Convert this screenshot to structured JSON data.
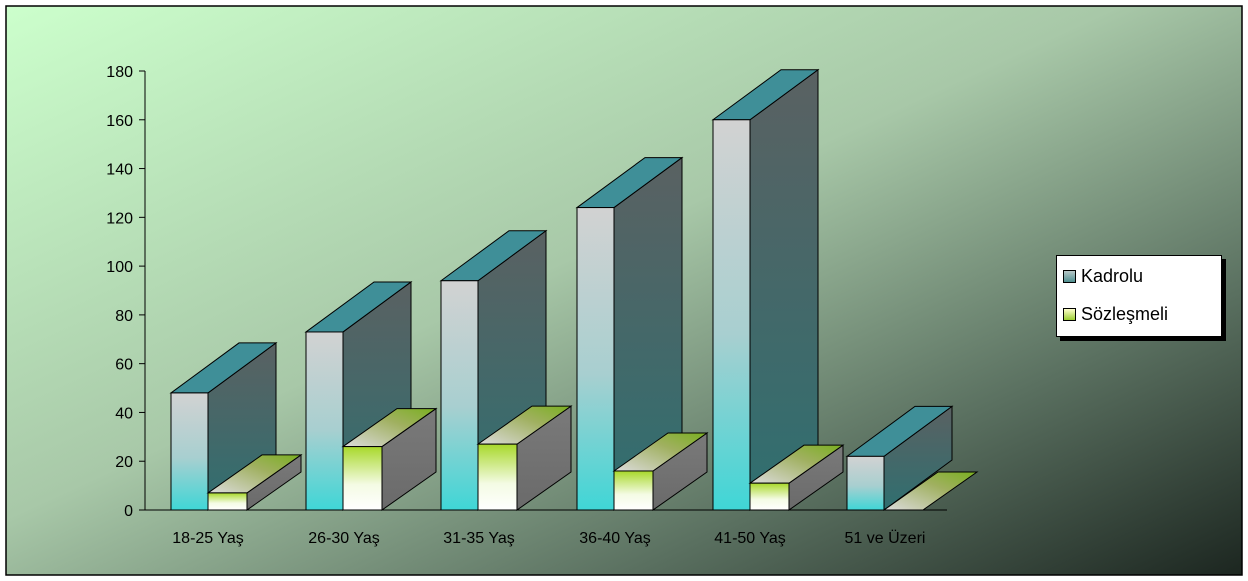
{
  "chart_data": {
    "type": "bar",
    "subtype": "3d-clustered-column",
    "categories": [
      "18-25 Yaş",
      "26-30 Yaş",
      "31-35 Yaş",
      "36-40 Yaş",
      "41-50 Yaş",
      "51 ve Üzeri"
    ],
    "series": [
      {
        "name": "Kadrolu",
        "values": [
          48,
          73,
          94,
          124,
          160,
          22
        ]
      },
      {
        "name": "Sözleşmeli",
        "values": [
          7,
          26,
          27,
          16,
          11,
          0
        ]
      }
    ],
    "yticks": [
      "0",
      "20",
      "40",
      "60",
      "80",
      "100",
      "120",
      "140",
      "160",
      "180"
    ],
    "ylim": [
      0,
      180
    ],
    "legend_position": "right",
    "grid": false,
    "colors": {
      "kadrolu_front_light": "#d0d0d0",
      "kadrolu_front_dark": "#4ecfcf",
      "kadrolu_top": "#3f8f98",
      "kadrolu_side": "#4f5f62",
      "sozlesmeli_front_light": "#ffffff",
      "sozlesmeli_front_dark": "#9acd32",
      "sozlesmeli_top_light": "#7ab020",
      "sozlesmeli_top_dark": "#d8d8d8",
      "sozlesmeli_side": "#6e6e6e",
      "bg_light": "#c8ffc8",
      "bg_dark": "#1e2a22"
    }
  }
}
